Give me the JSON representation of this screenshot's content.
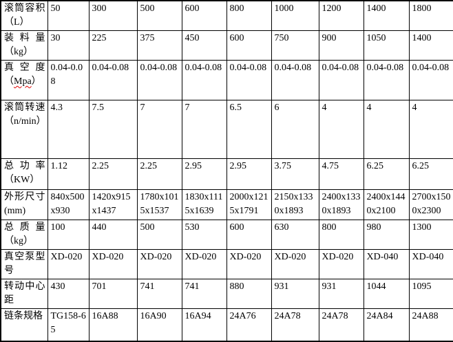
{
  "colors": {
    "border": "#000000",
    "background": "#ffffff",
    "text": "#000000",
    "spellcheck_squiggle": "#e00000"
  },
  "table": {
    "description": "equipment-spec-table",
    "rows": [
      {
        "label": "滚筒容积（L）",
        "values": [
          "50",
          "300",
          "500",
          "600",
          "800",
          "1000",
          "1200",
          "1400",
          "1800"
        ]
      },
      {
        "label": "装料量（kg）",
        "values": [
          "30",
          "225",
          "375",
          "450",
          "600",
          "750",
          "900",
          "1050",
          "1400"
        ]
      },
      {
        "label_prefix": "真空度（",
        "label_word": "Mpa",
        "label_suffix": "）",
        "label": "真空度（Mpa）",
        "values": [
          "0.04-0.08",
          "0.04-0.08",
          "0.04-0.08",
          "0.04-0.08",
          "0.04-0.08",
          "0.04-0.08",
          "0.04-0.08",
          "0.04-0.08",
          "0.04-0.08"
        ]
      },
      {
        "label": "滚筒转速（n/min）",
        "values": [
          "4.3",
          "7.5",
          "7",
          "7",
          "6.5",
          "6",
          "4",
          "4",
          "4"
        ]
      },
      {
        "label": "总功率（KW）",
        "values": [
          "1.12",
          "2.25",
          "2.25",
          "2.95",
          "2.95",
          "3.75",
          "4.75",
          "6.25",
          "6.25"
        ]
      },
      {
        "label": "外形尺寸(mm)",
        "values": [
          "840x500x930",
          "1420x915x1437",
          "1780x1015x1537",
          "1830x1115x1639",
          "2000x1215x1791",
          "2150x1330x1893",
          "2400x1330x1893",
          "2400x1440x2100",
          "2700x1500x2300"
        ]
      },
      {
        "label": "总质量（kg）",
        "values": [
          "100",
          "440",
          "500",
          "530",
          "600",
          "630",
          "800",
          "980",
          "1300"
        ]
      },
      {
        "label": "真空泵型号",
        "values": [
          "XD-020",
          "XD-020",
          "XD-020",
          "XD-020",
          "XD-020",
          "XD-020",
          "XD-020",
          "XD-040",
          "XD-040"
        ]
      },
      {
        "label": "转动中心距",
        "values": [
          "430",
          "701",
          "741",
          "741",
          "880",
          "931",
          "931",
          "1044",
          "1095"
        ]
      },
      {
        "label": "链条规格",
        "values": [
          "TG158-65",
          "16A88",
          "16A90",
          "16A94",
          "24A76",
          "24A78",
          "24A78",
          "24A84",
          "24A88"
        ]
      }
    ]
  }
}
